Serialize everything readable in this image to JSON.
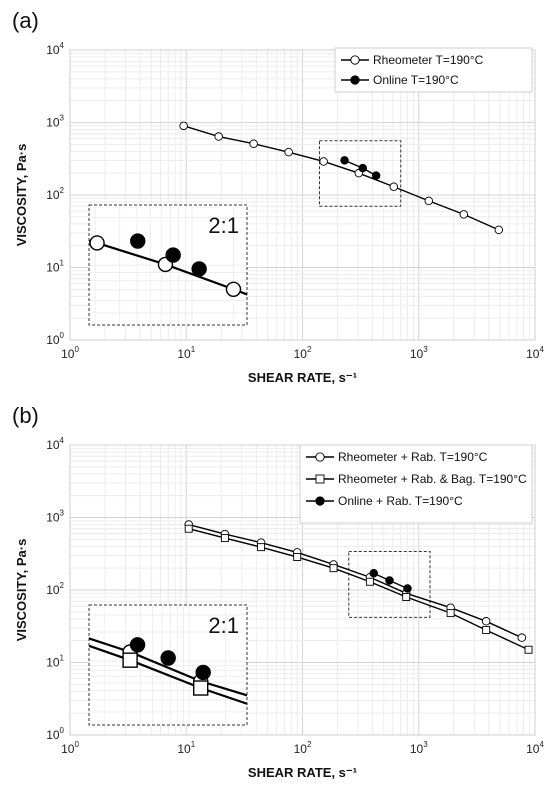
{
  "panels": [
    {
      "label": "(a)",
      "inset_label": "2:1",
      "xlabel": "SHEAR RATE, s⁻¹",
      "ylabel": "VISCOSITY, Pa·s",
      "tick_base": "10",
      "x_tick_exps": [
        "0",
        "1",
        "2",
        "3",
        "4"
      ],
      "y_tick_exps": [
        "0",
        "1",
        "2",
        "3",
        "4"
      ],
      "legend_entries": [
        "Rheometer T=190°C",
        "Online T=190°C"
      ]
    },
    {
      "label": "(b)",
      "inset_label": "2:1",
      "xlabel": "SHEAR RATE, s⁻¹",
      "ylabel": "VISCOSITY, Pa·s",
      "tick_base": "10",
      "x_tick_exps": [
        "0",
        "1",
        "2",
        "3",
        "4"
      ],
      "y_tick_exps": [
        "0",
        "1",
        "2",
        "3",
        "4"
      ],
      "legend_entries": [
        "Rheometer + Rab. T=190°C",
        "Rheometer + Rab. & Bag. T=190°C",
        "Online + Rab. T=190°C"
      ]
    }
  ],
  "chart_data": [
    {
      "type": "scatter",
      "title": "(a)",
      "xlabel": "SHEAR RATE, s⁻¹",
      "ylabel": "VISCOSITY, Pa·s",
      "xscale": "log",
      "yscale": "log",
      "xlim": [
        1,
        10000
      ],
      "ylim": [
        1,
        10000
      ],
      "grid": true,
      "legend_position": "top-right",
      "zoom_box": {
        "x": [
          140,
          700
        ],
        "y": [
          70,
          560
        ]
      },
      "series": [
        {
          "name": "Rheometer T=190°C",
          "marker": "circle-open",
          "color": "#000000",
          "x": [
            9.5,
            19,
            38,
            76,
            152,
            305,
            610,
            1220,
            2440,
            4880
          ],
          "y": [
            900,
            640,
            510,
            390,
            290,
            200,
            130,
            83,
            54,
            33
          ]
        },
        {
          "name": "Online T=190°C",
          "marker": "circle-filled",
          "color": "#000000",
          "x": [
            230,
            330,
            430
          ],
          "y": [
            300,
            235,
            185
          ]
        }
      ]
    },
    {
      "type": "scatter",
      "title": "(b)",
      "xlabel": "SHEAR RATE, s⁻¹",
      "ylabel": "VISCOSITY, Pa·s",
      "xscale": "log",
      "yscale": "log",
      "xlim": [
        1,
        10000
      ],
      "ylim": [
        1,
        10000
      ],
      "grid": true,
      "legend_position": "top-right",
      "zoom_box": {
        "x": [
          250,
          1250
        ],
        "y": [
          42,
          340
        ]
      },
      "series": [
        {
          "name": "Rheometer + Rab. T=190°C",
          "marker": "circle-open",
          "color": "#000000",
          "x": [
            10.5,
            21.5,
            44,
            90,
            185,
            380,
            780,
            1880,
            3800,
            7700
          ],
          "y": [
            800,
            590,
            450,
            330,
            225,
            150,
            90,
            57,
            37,
            22
          ]
        },
        {
          "name": "Rheometer + Rab. & Bag. T=190°C",
          "marker": "square-open",
          "color": "#000000",
          "x": [
            10.5,
            21.5,
            44,
            90,
            185,
            380,
            780,
            1880,
            3800,
            8800
          ],
          "y": [
            700,
            520,
            390,
            285,
            200,
            130,
            80,
            48,
            28,
            15
          ]
        },
        {
          "name": "Online + Rab. T=190°C",
          "marker": "circle-filled",
          "color": "#000000",
          "x": [
            410,
            560,
            800
          ],
          "y": [
            170,
            135,
            105
          ]
        }
      ]
    }
  ]
}
